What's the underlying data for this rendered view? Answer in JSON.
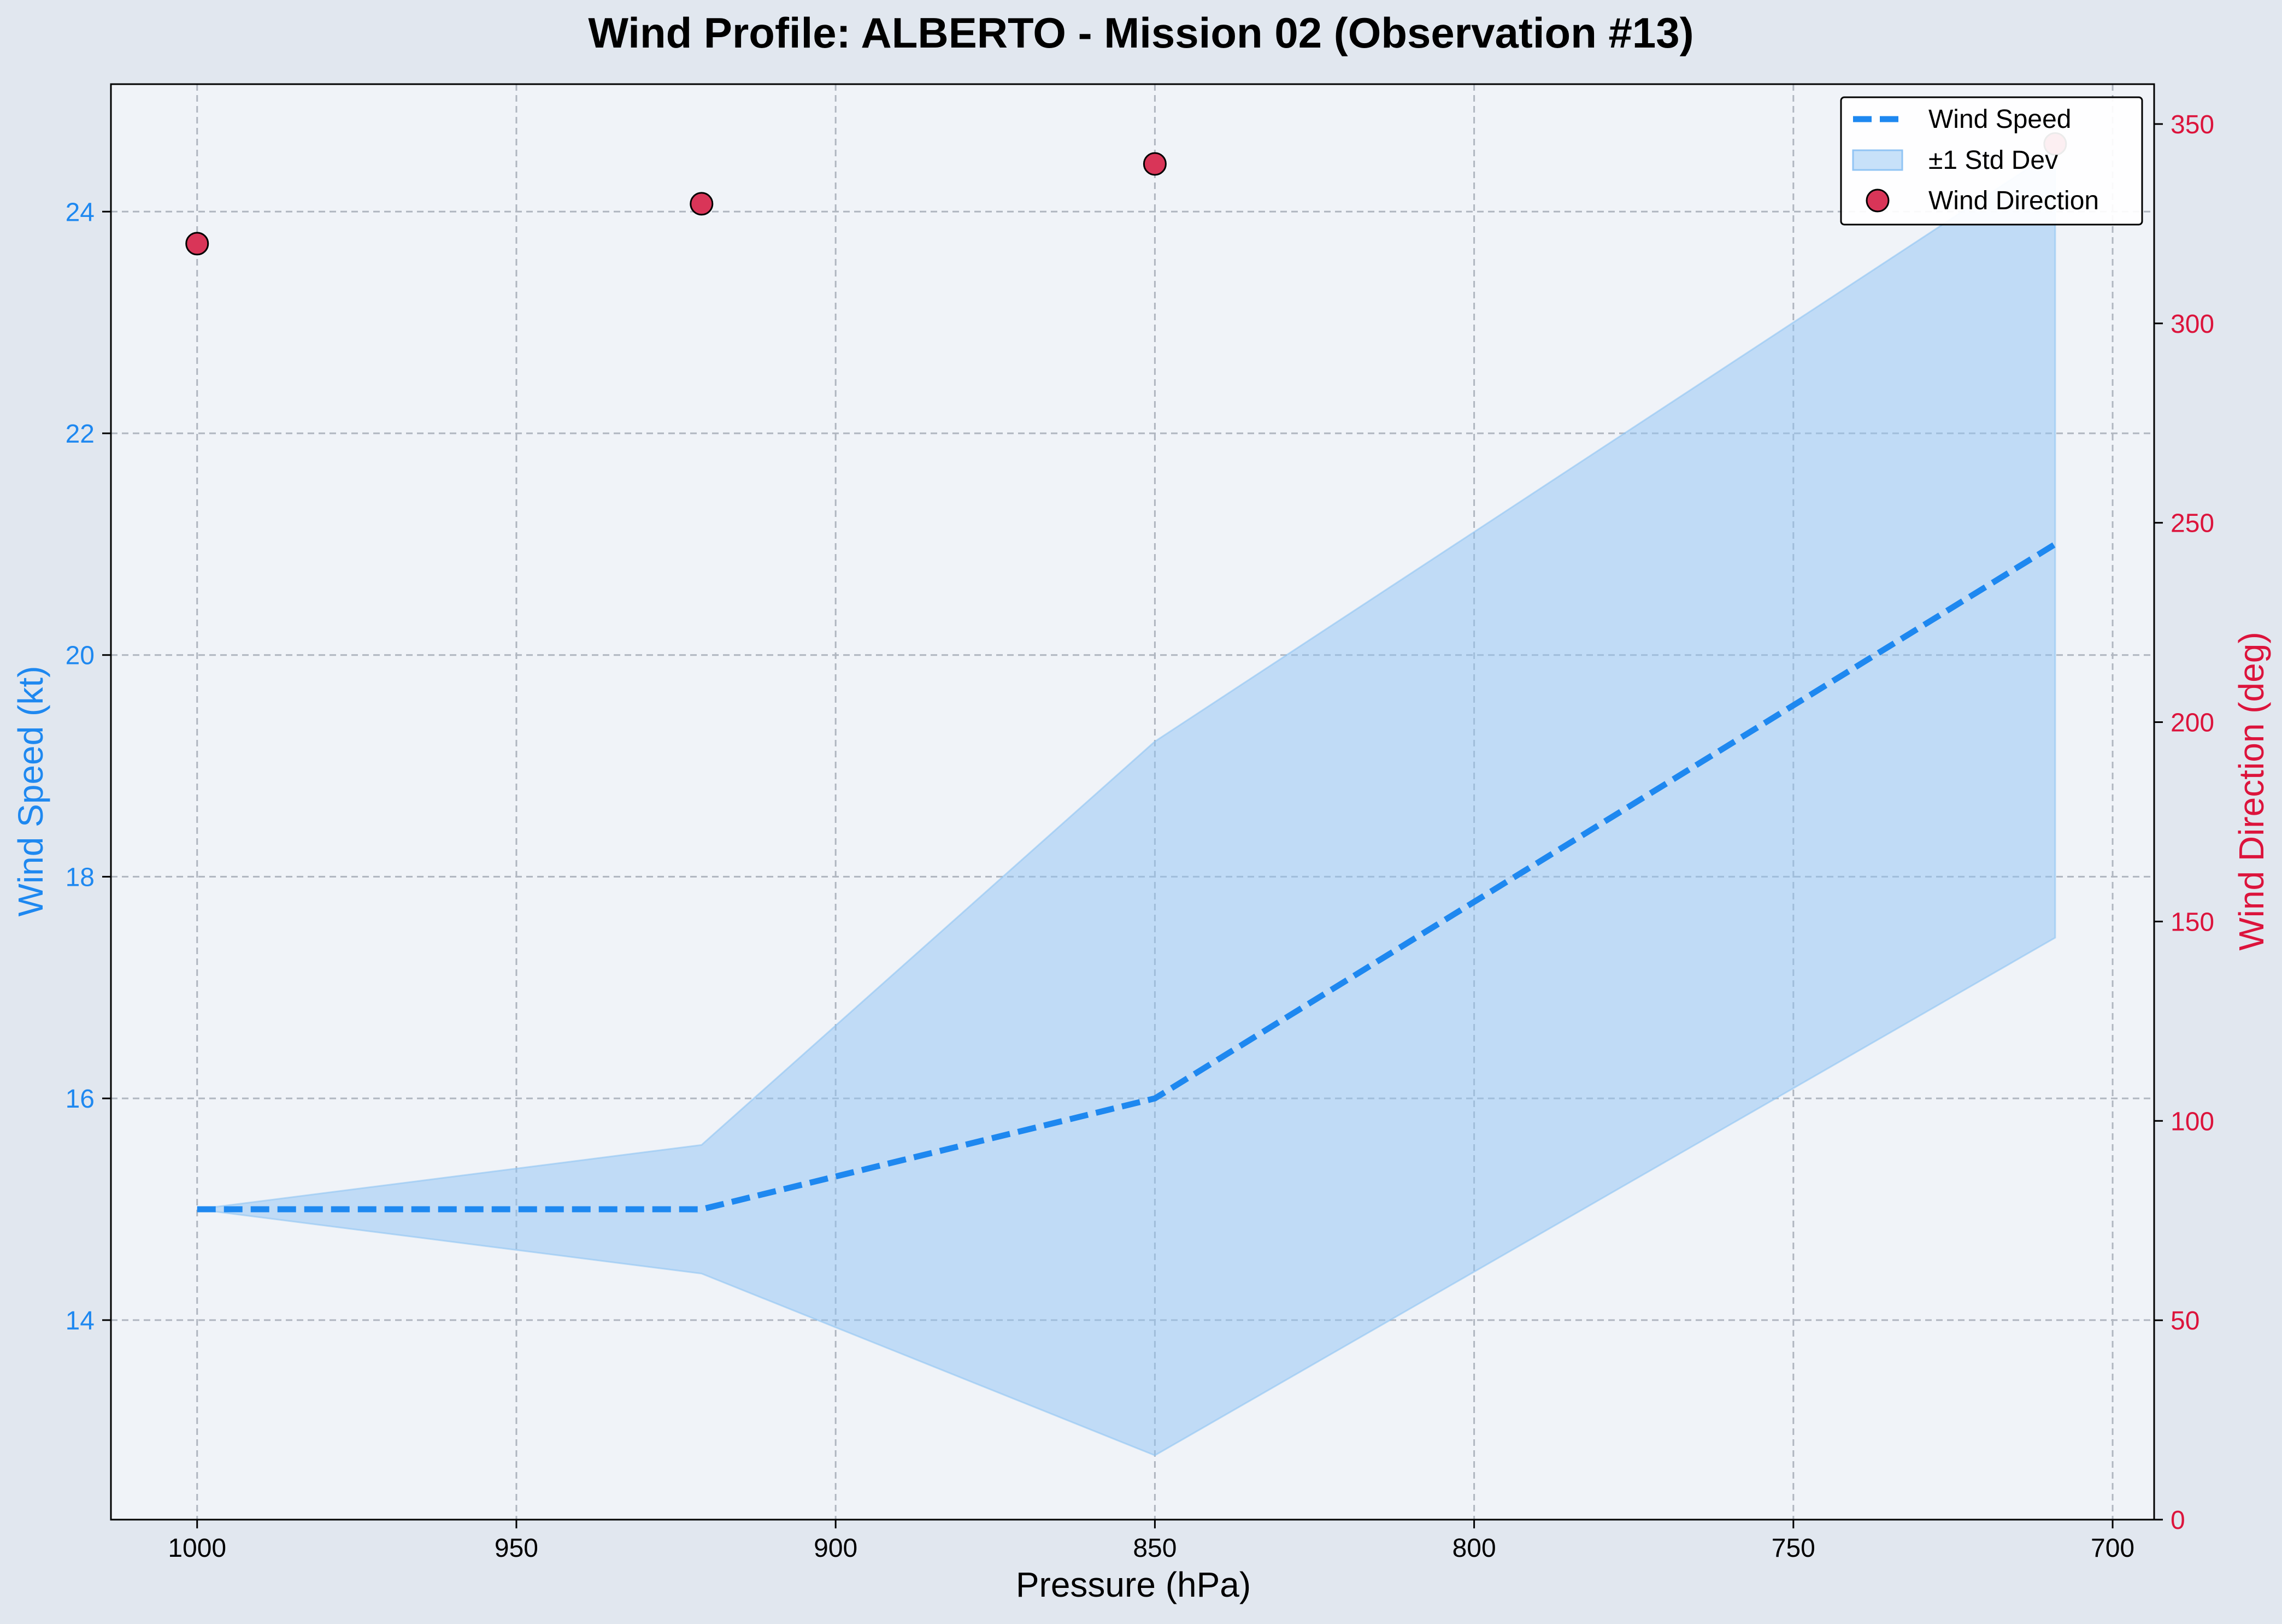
{
  "chart_data": {
    "type": "line",
    "title": "Wind Profile: ALBERTO - Mission 02 (Observation #13)",
    "xlabel": "Pressure (hPa)",
    "ylabel": "Wind Speed (kt)",
    "y2label": "Wind Direction (deg)",
    "x_inverted": true,
    "xlim": [
      1013.5,
      693.5
    ],
    "ylim": [
      12.2,
      25.15
    ],
    "y2lim": [
      0,
      360
    ],
    "x_ticks": [
      1000,
      950,
      900,
      850,
      800,
      750,
      700
    ],
    "y_ticks": [
      14,
      16,
      18,
      20,
      22,
      24
    ],
    "y2_ticks": [
      0,
      50,
      100,
      150,
      200,
      250,
      300,
      350
    ],
    "grid": true,
    "legend_position": "top-right",
    "x": [
      1000,
      921,
      850,
      709
    ],
    "series": [
      {
        "name": "Wind Speed",
        "kind": "line",
        "style": "dashed",
        "axis": "left",
        "color": "#1e88f0",
        "values": [
          15.0,
          15.0,
          16.0,
          21.0
        ]
      },
      {
        "name": "±1 Std Dev",
        "kind": "band",
        "axis": "left",
        "color": "#90c4f4",
        "upper": [
          15.0,
          15.58,
          19.22,
          24.55
        ],
        "lower": [
          15.0,
          14.42,
          12.78,
          17.45
        ]
      },
      {
        "name": "Wind Direction",
        "kind": "scatter",
        "axis": "right",
        "color": "#d93558",
        "values": [
          320,
          330,
          340,
          345
        ]
      }
    ],
    "colors": {
      "left_axis": "#1e88f0",
      "right_axis": "#dc143c",
      "plot_background": "#f0f3f8",
      "figure_background": "#e1e7ef"
    }
  }
}
